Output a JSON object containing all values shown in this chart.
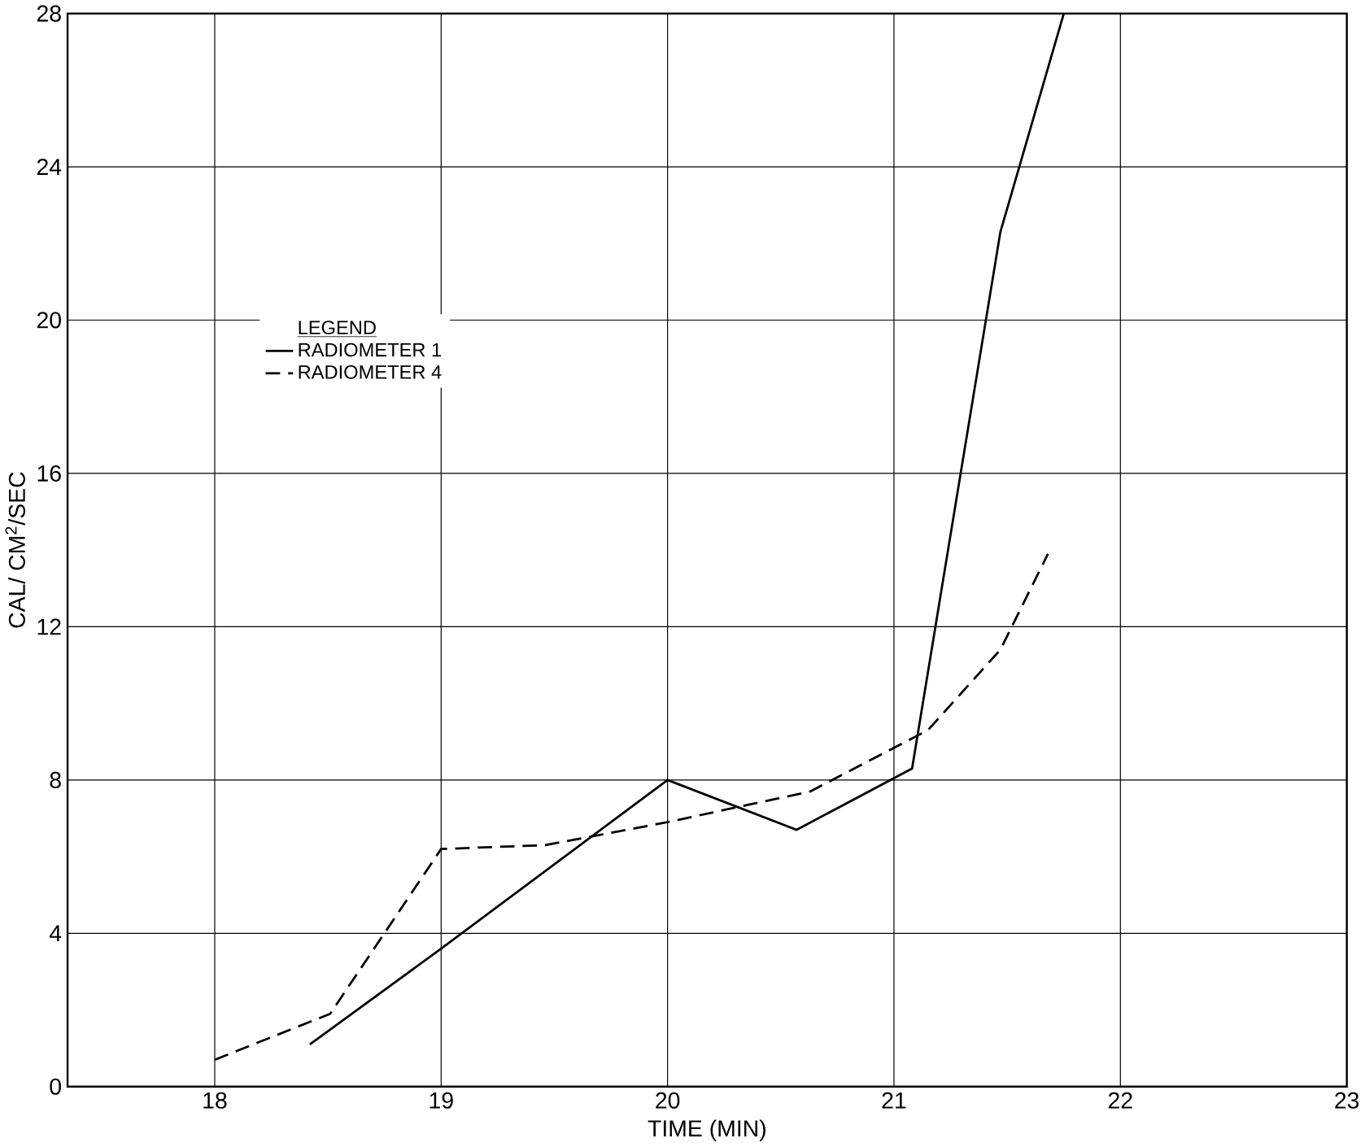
{
  "chart_data": {
    "type": "line",
    "xlabel": "TIME (MIN)",
    "ylabel": "CAL/ CM$^{2}$/SEC",
    "legend_title": "LEGEND",
    "xlim": [
      17.35,
      23
    ],
    "ylim": [
      0,
      28
    ],
    "xticks": [
      18,
      19,
      20,
      21,
      22,
      23
    ],
    "yticks": [
      0,
      4,
      8,
      12,
      16,
      20,
      24,
      28
    ],
    "grid": true,
    "legend": "left",
    "marker": "none",
    "series": [
      {
        "name": "RADIOMETER 1",
        "color": "#000000",
        "line_style": "solid",
        "x": [
          18.42,
          19.0,
          20.0,
          20.57,
          21.08,
          21.47,
          21.75
        ],
        "values": [
          1.1,
          3.6,
          8.0,
          6.7,
          8.3,
          22.3,
          28
        ]
      },
      {
        "name": "RADIOMETER 4",
        "color": "#000000",
        "line_style": "dashed",
        "x": [
          18.0,
          18.51,
          19.0,
          19.46,
          20.0,
          20.63,
          21.15,
          21.47,
          21.68
        ],
        "values": [
          0.7,
          1.9,
          6.2,
          6.3,
          6.9,
          7.7,
          9.3,
          11.4,
          13.9
        ]
      }
    ]
  }
}
